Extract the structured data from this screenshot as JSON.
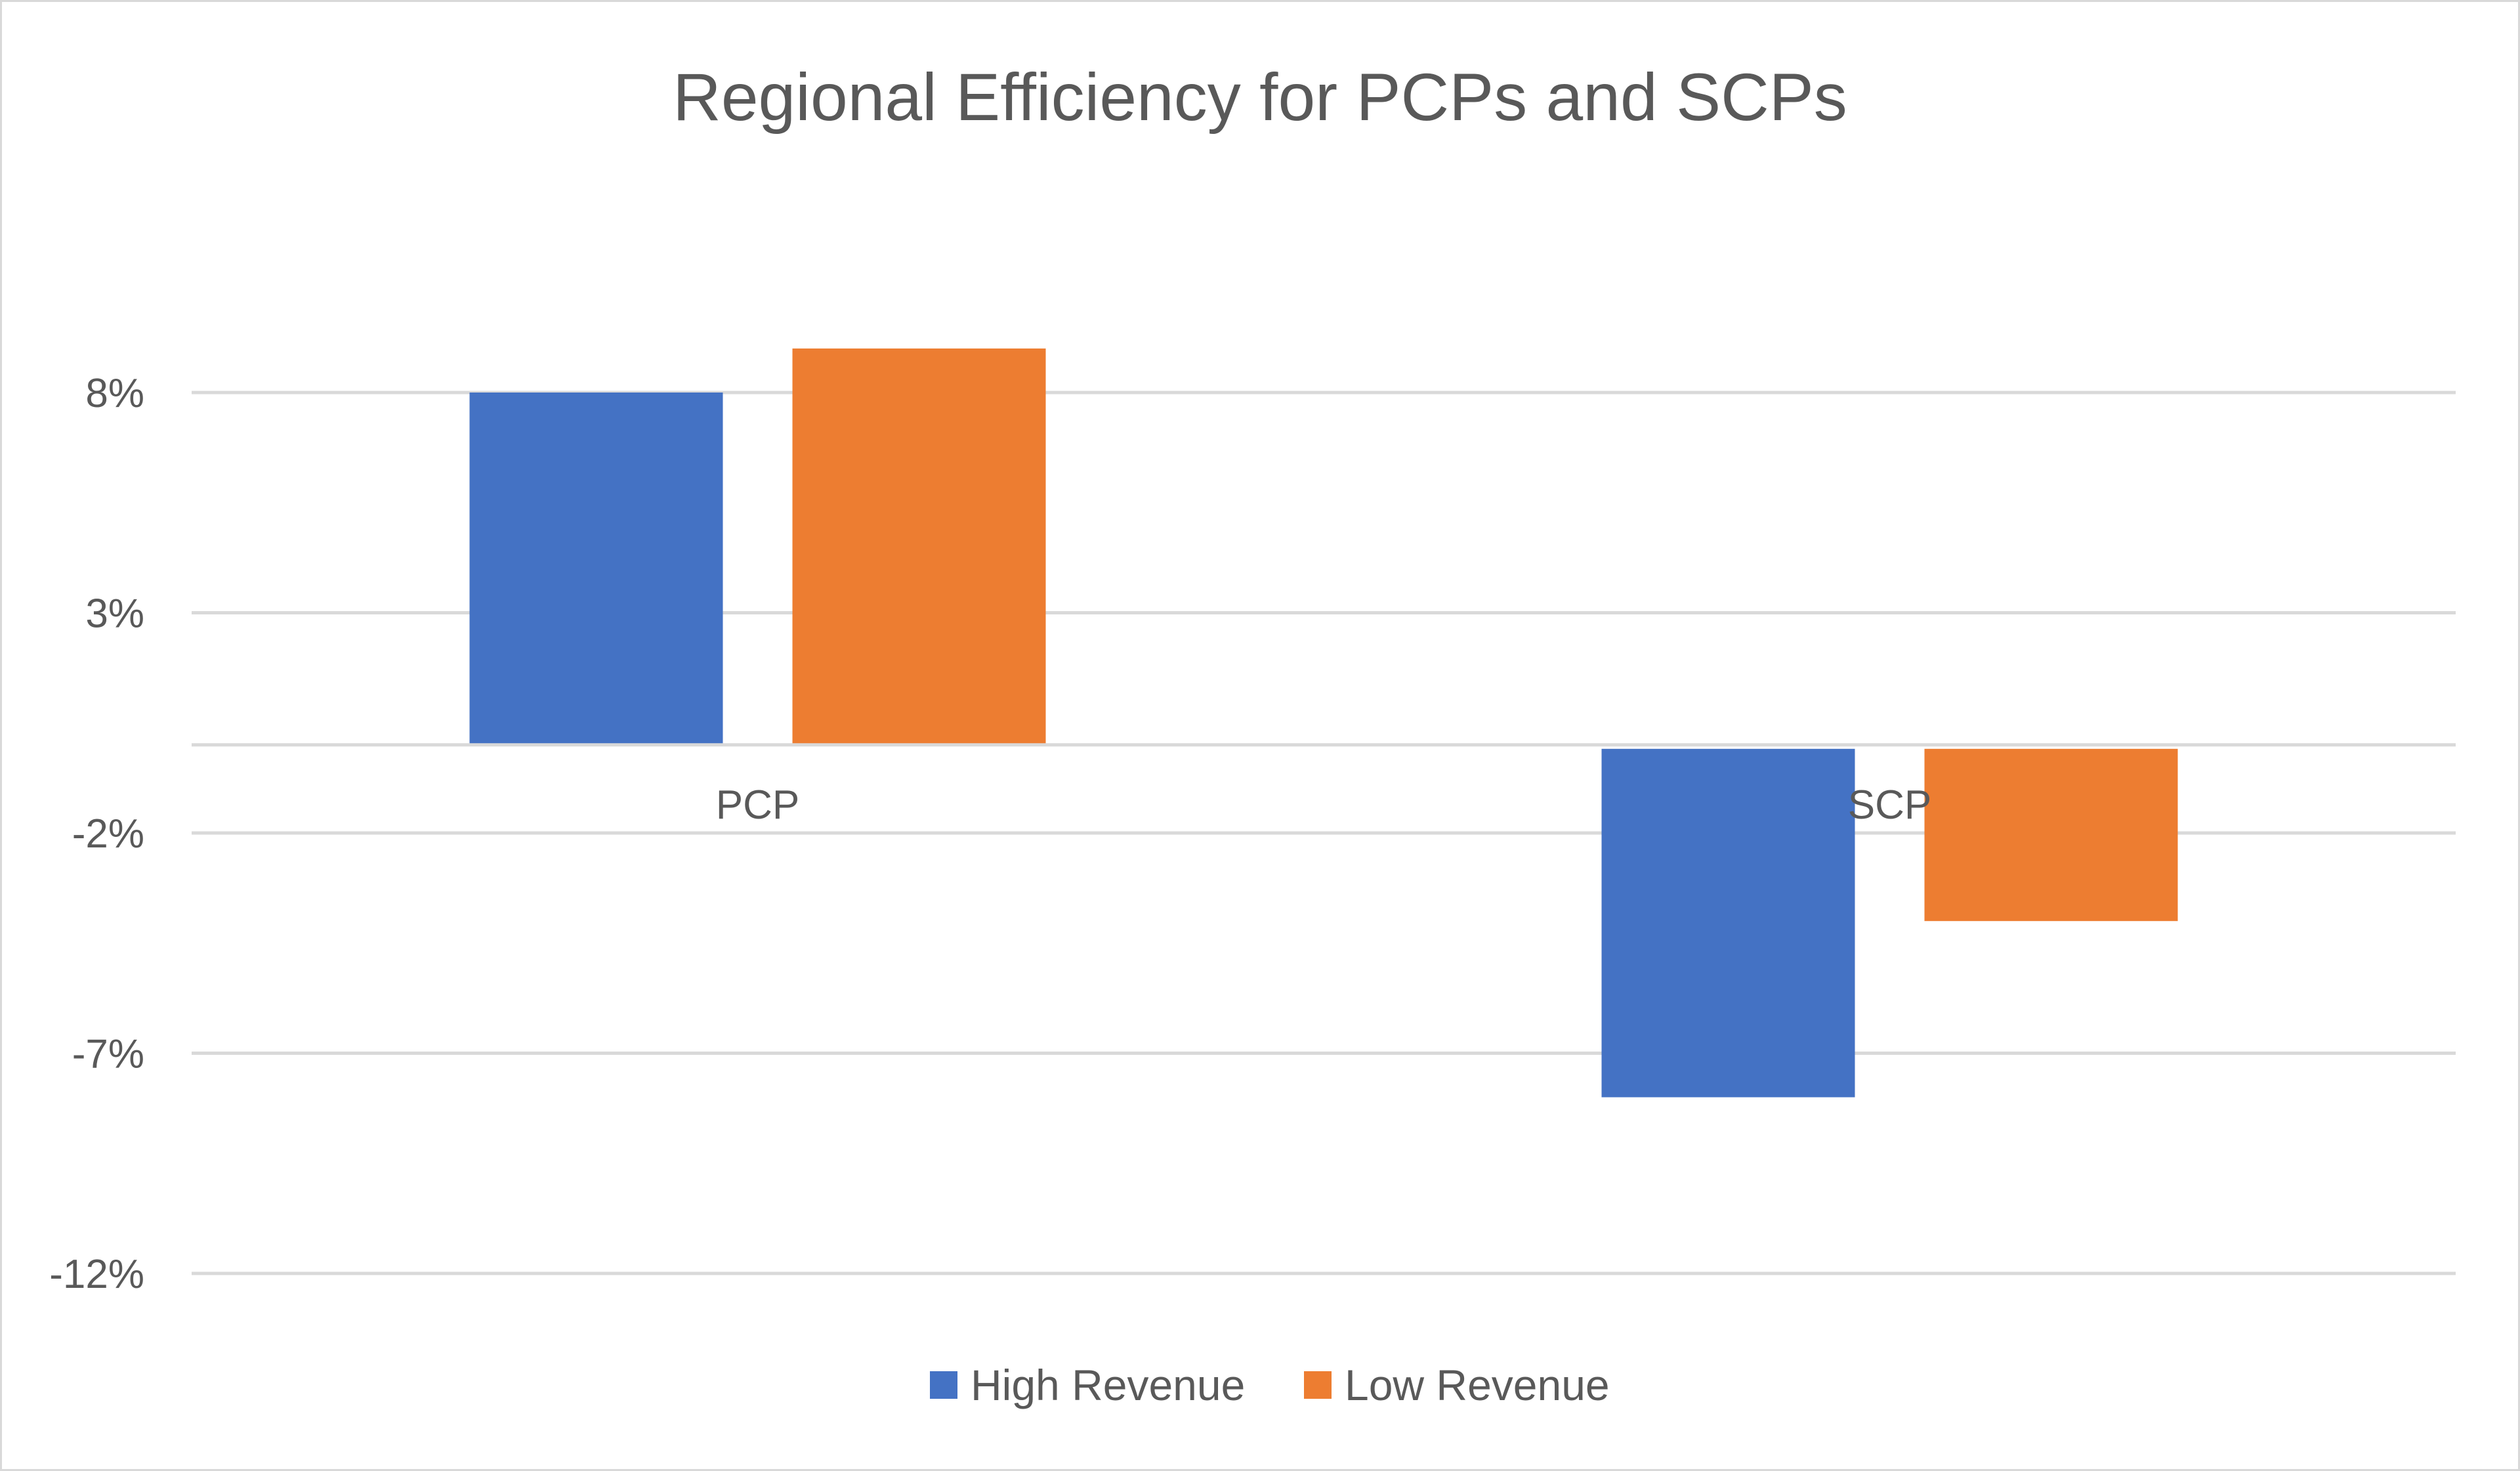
{
  "chart_data": {
    "type": "bar",
    "title": "Regional Efficiency for PCPs and SCPs",
    "xlabel": "",
    "ylabel": "",
    "categories": [
      "PCP",
      "SCP"
    ],
    "series": [
      {
        "name": "High Revenue",
        "values": [
          8.0,
          -8.0
        ],
        "color": "#4472C4"
      },
      {
        "name": "Low Revenue",
        "values": [
          9.0,
          -4.0
        ],
        "color": "#ED7D31"
      }
    ],
    "ylim": [
      -12,
      8
    ],
    "yticks": [
      8,
      3,
      -2,
      -7,
      -12
    ],
    "ytick_labels": [
      "8%",
      "3%",
      "-2%",
      "-7%",
      "-12%"
    ],
    "grid": true,
    "legend_position": "bottom"
  }
}
